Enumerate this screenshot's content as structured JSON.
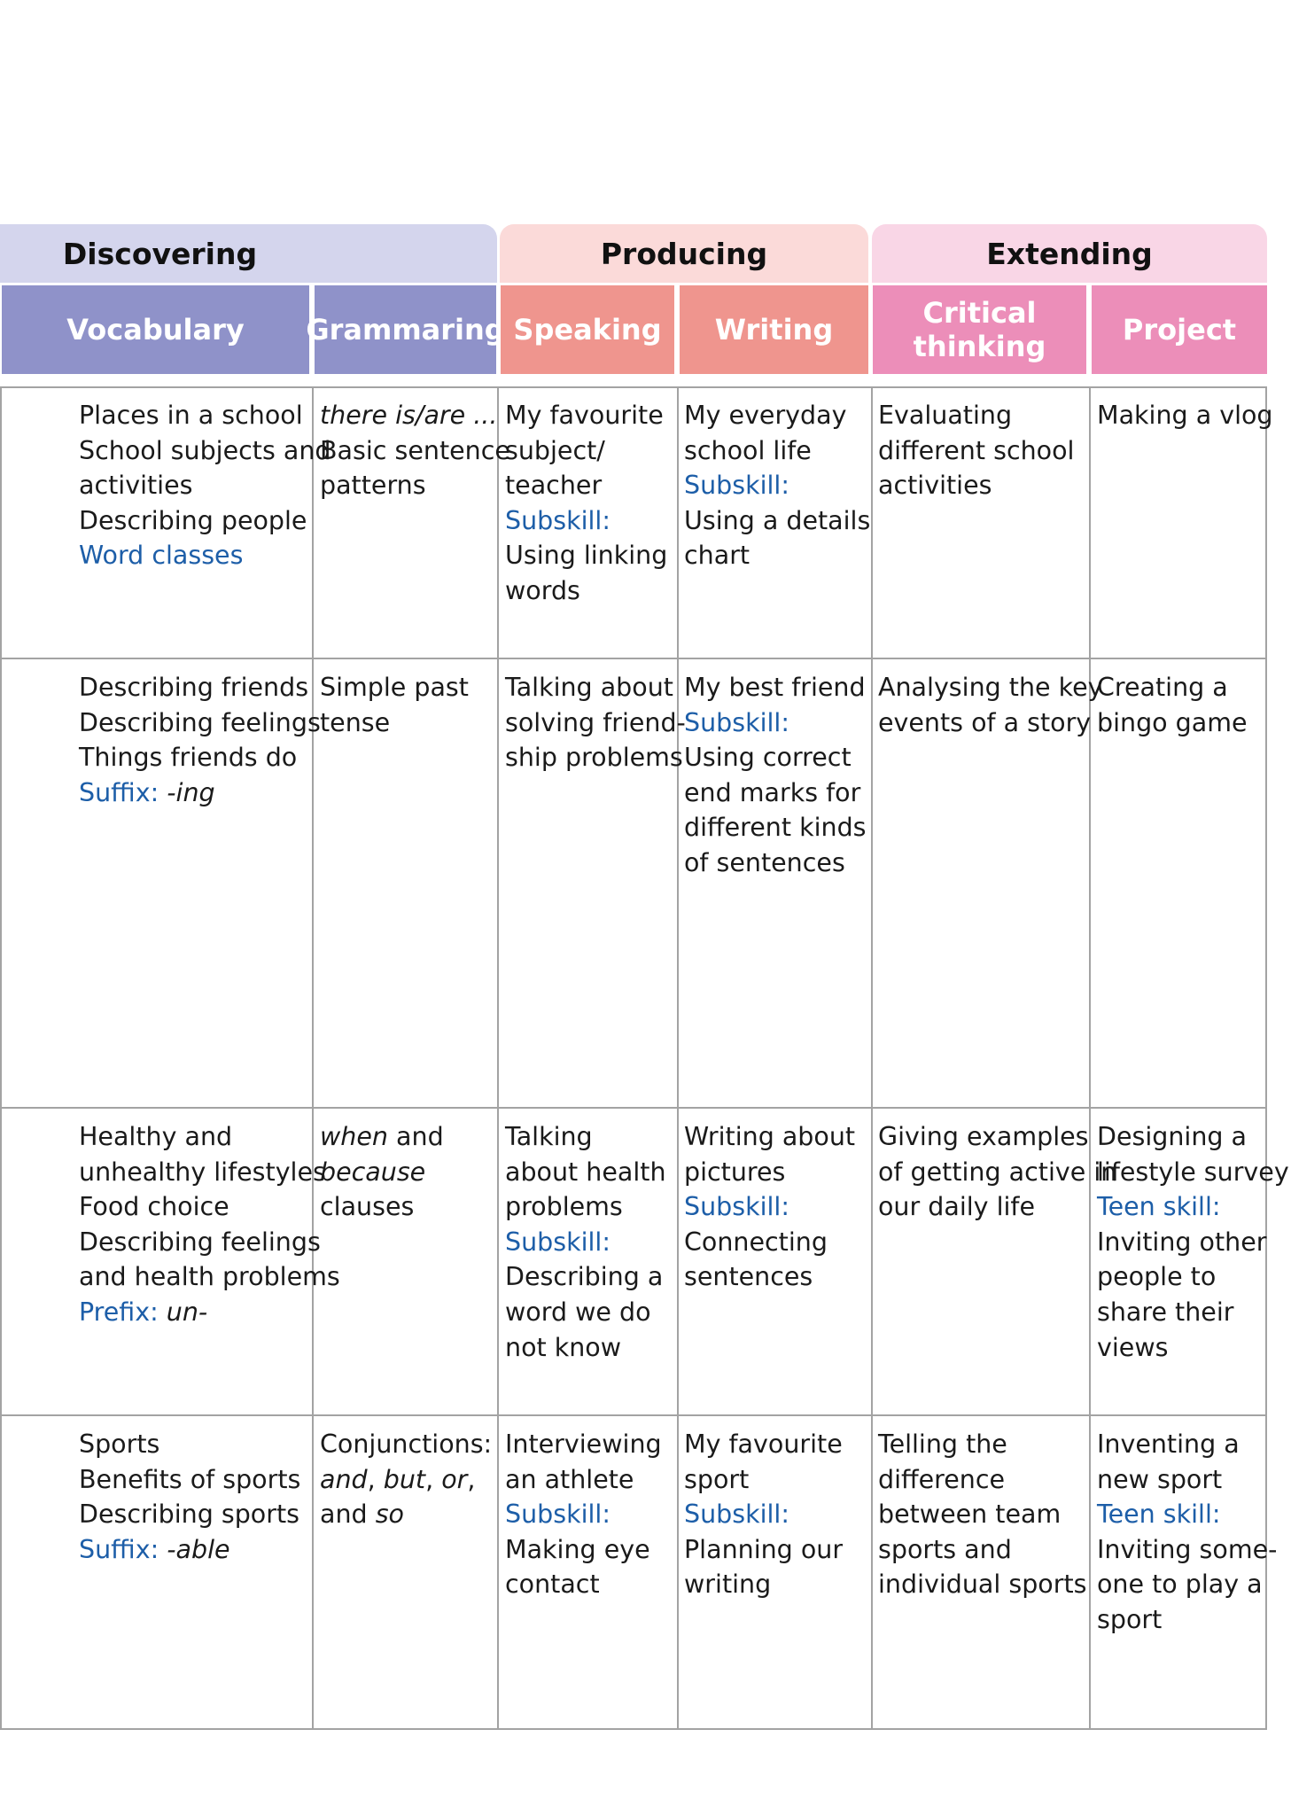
{
  "groups": {
    "discovering": "Discovering",
    "producing": "Producing",
    "extending": "Extending"
  },
  "columns": {
    "vocabulary": "Vocabulary",
    "grammaring": "Grammaring",
    "speaking": "Speaking",
    "writing": "Writing",
    "critical_thinking": "Critical thinking",
    "project": "Project"
  },
  "rows": [
    {
      "vocabulary": [
        "Places in a school",
        "School subjects and",
        "activities",
        "Describing people",
        "Word classes"
      ],
      "grammaring": [
        "there is/are ...",
        "Basic sentence",
        "patterns"
      ],
      "speaking": [
        "My favourite",
        "subject/",
        "teacher",
        "Subskill:",
        "Using linking",
        "words"
      ],
      "writing": [
        "My everyday",
        "school life",
        "Subskill:",
        "Using a details",
        "chart"
      ],
      "critical": [
        "Evaluating",
        "different school",
        "activities"
      ],
      "project": [
        "Making a vlog"
      ]
    },
    {
      "vocabulary": [
        "Describing friends",
        "Describing feelings",
        "Things friends do",
        "Suffix:",
        "-ing"
      ],
      "grammaring": [
        "Simple past",
        "tense"
      ],
      "speaking": [
        "Talking about",
        "solving friend-",
        "ship problems"
      ],
      "writing": [
        "My best friend",
        "Subskill:",
        "Using correct",
        "end marks for",
        "different kinds",
        "of sentences"
      ],
      "critical": [
        "Analysing the key",
        "events of a story"
      ],
      "project": [
        "Creating a",
        "bingo game"
      ]
    },
    {
      "vocabulary": [
        "Healthy and",
        "unhealthy lifestyles",
        "Food choice",
        "Describing feelings",
        "and health problems",
        "Prefix:",
        "un-"
      ],
      "grammaring": [
        "when",
        "and",
        "because",
        "clauses"
      ],
      "speaking": [
        "Talking",
        "about health",
        "problems",
        "Subskill:",
        "Describing a",
        "word we do",
        "not know"
      ],
      "writing": [
        "Writing about",
        "pictures",
        "Subskill:",
        "Connecting",
        "sentences"
      ],
      "critical": [
        "Giving examples",
        "of getting active in",
        "our daily life"
      ],
      "project": [
        "Designing a",
        "lifestyle survey",
        "Teen skill:",
        "Inviting other",
        "people to",
        "share their",
        "views"
      ]
    },
    {
      "vocabulary": [
        "Sports",
        "Benefits of sports",
        "Describing sports",
        "Suffix:",
        "-able"
      ],
      "grammaring": [
        "Conjunctions:",
        "and",
        ",",
        "but",
        "or",
        "and",
        "so"
      ],
      "speaking": [
        "Interviewing",
        "an athlete",
        "Subskill:",
        "Making eye",
        "contact"
      ],
      "writing": [
        "My favourite",
        "sport",
        "Subskill:",
        "Planning our",
        "writing"
      ],
      "critical": [
        "Telling the",
        "difference",
        "between team",
        "sports and",
        "individual sports"
      ],
      "project": [
        "Inventing a",
        "new sport",
        "Teen skill:",
        "Inviting some-",
        "one to play a",
        "sport"
      ]
    }
  ]
}
